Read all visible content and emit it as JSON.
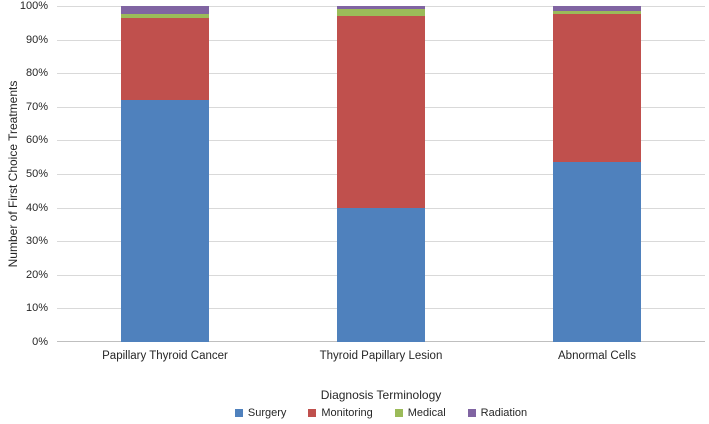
{
  "chart_data": {
    "type": "bar",
    "subtype": "stacked-100-percent",
    "categories": [
      "Papillary Thyroid Cancer",
      "Thyroid Papillary Lesion",
      "Abnormal Cells"
    ],
    "series": [
      {
        "name": "Surgery",
        "color": "#4F81BD",
        "values": [
          72,
          40,
          53.5
        ]
      },
      {
        "name": "Monitoring",
        "color": "#C0504D",
        "values": [
          24.5,
          57,
          44
        ]
      },
      {
        "name": "Medical",
        "color": "#9BBB59",
        "values": [
          1,
          2,
          1
        ]
      },
      {
        "name": "Radiation",
        "color": "#8064A2",
        "values": [
          2.5,
          1,
          1.5
        ]
      }
    ],
    "title": "",
    "xlabel": "Diagnosis Terminology",
    "ylabel": "Number of First Choice Treatments",
    "y_ticks": [
      "0%",
      "10%",
      "20%",
      "30%",
      "40%",
      "50%",
      "60%",
      "70%",
      "80%",
      "90%",
      "100%"
    ],
    "ylim": [
      0,
      100
    ],
    "grid": true,
    "legend_position": "bottom"
  },
  "colors": {
    "gridline": "#D9D9D9",
    "axis_line": "#BFBFBF",
    "text": "#262626",
    "background": "#FFFFFF"
  }
}
